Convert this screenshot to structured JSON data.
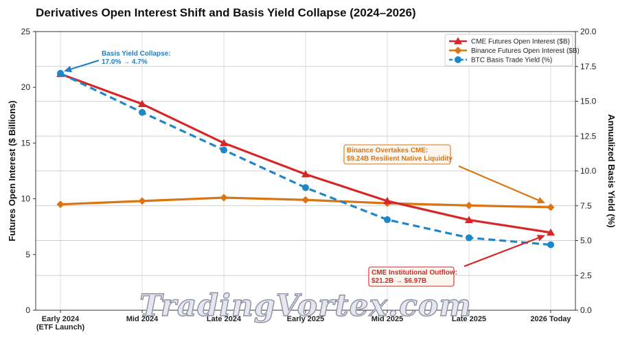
{
  "chart_data": {
    "type": "line",
    "title": "Derivatives Open Interest Shift and Basis Yield Collapse (2024–2026)",
    "categories": [
      [
        "Early 2024",
        "(ETF Launch)"
      ],
      [
        "Mid 2024"
      ],
      [
        "Late 2024"
      ],
      [
        "Early 2025"
      ],
      [
        "Mid 2025"
      ],
      [
        "Late 2025"
      ],
      [
        "2026 Today"
      ]
    ],
    "ylabel_left": "Futures Open Interest ($ Billions)",
    "ylabel_right": "Annualized Basis Yield (%)",
    "ylim_left": [
      0,
      25
    ],
    "ylim_right": [
      0,
      20
    ],
    "yticks_left": [
      "0",
      "5",
      "10",
      "15",
      "20",
      "25"
    ],
    "yticks_right": [
      "0.0",
      "2.5",
      "5.0",
      "7.5",
      "10.0",
      "12.5",
      "15.0",
      "17.5",
      "20.0"
    ],
    "grid": true,
    "legend_position": "top-right",
    "series": [
      {
        "name": "CME Futures Open Interest ($B)",
        "axis": "left",
        "color": "#d62728",
        "marker": "triangle",
        "dashed": false,
        "values": [
          21.2,
          18.5,
          15.0,
          12.2,
          9.8,
          8.1,
          6.97
        ]
      },
      {
        "name": "Binance Futures Open Interest ($B)",
        "axis": "left",
        "color": "#d97512",
        "marker": "diamond",
        "dashed": false,
        "values": [
          9.5,
          9.8,
          10.1,
          9.9,
          9.6,
          9.4,
          9.24
        ]
      },
      {
        "name": "BTC Basis Trade Yield (%)",
        "axis": "right",
        "color": "#1f86c8",
        "marker": "circle",
        "dashed": true,
        "values": [
          17.0,
          14.2,
          11.5,
          8.8,
          6.5,
          5.2,
          4.7
        ]
      }
    ],
    "annotations": [
      {
        "lines": [
          "Basis Yield Collapse:",
          "17.0% → 4.7%"
        ],
        "color": "#1f7fc4",
        "boxed": false
      },
      {
        "lines": [
          "Binance Overtakes CME:",
          "$9.24B Resilient Native Liquidity"
        ],
        "color": "#d97512",
        "boxed": true
      },
      {
        "lines": [
          "CME Institutional Outflow:",
          "$21.2B → $6.97B"
        ],
        "color": "#d62728",
        "boxed": true
      }
    ],
    "watermark": "TradingVortex.com"
  }
}
